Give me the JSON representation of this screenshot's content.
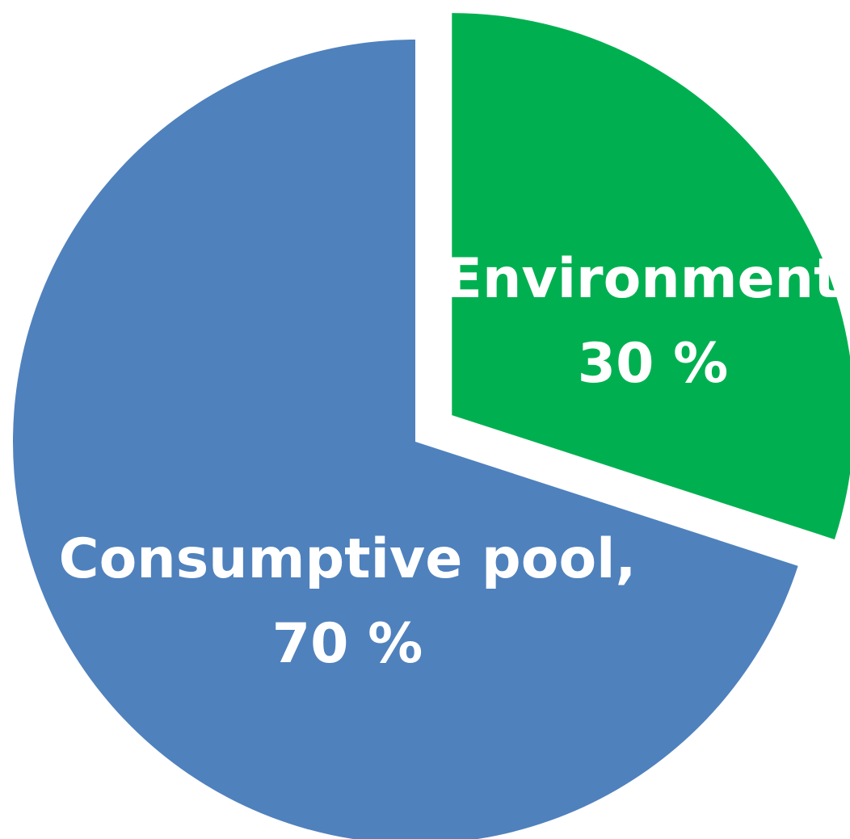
{
  "chart_data": {
    "type": "pie",
    "title": "",
    "slices": [
      {
        "label": "Consumptive pool",
        "value": 70,
        "display": "70 %",
        "color": "#4F81BD",
        "exploded": false
      },
      {
        "label": "Environment",
        "value": 30,
        "display": "30 %",
        "color": "#00B050",
        "exploded": true
      }
    ]
  }
}
